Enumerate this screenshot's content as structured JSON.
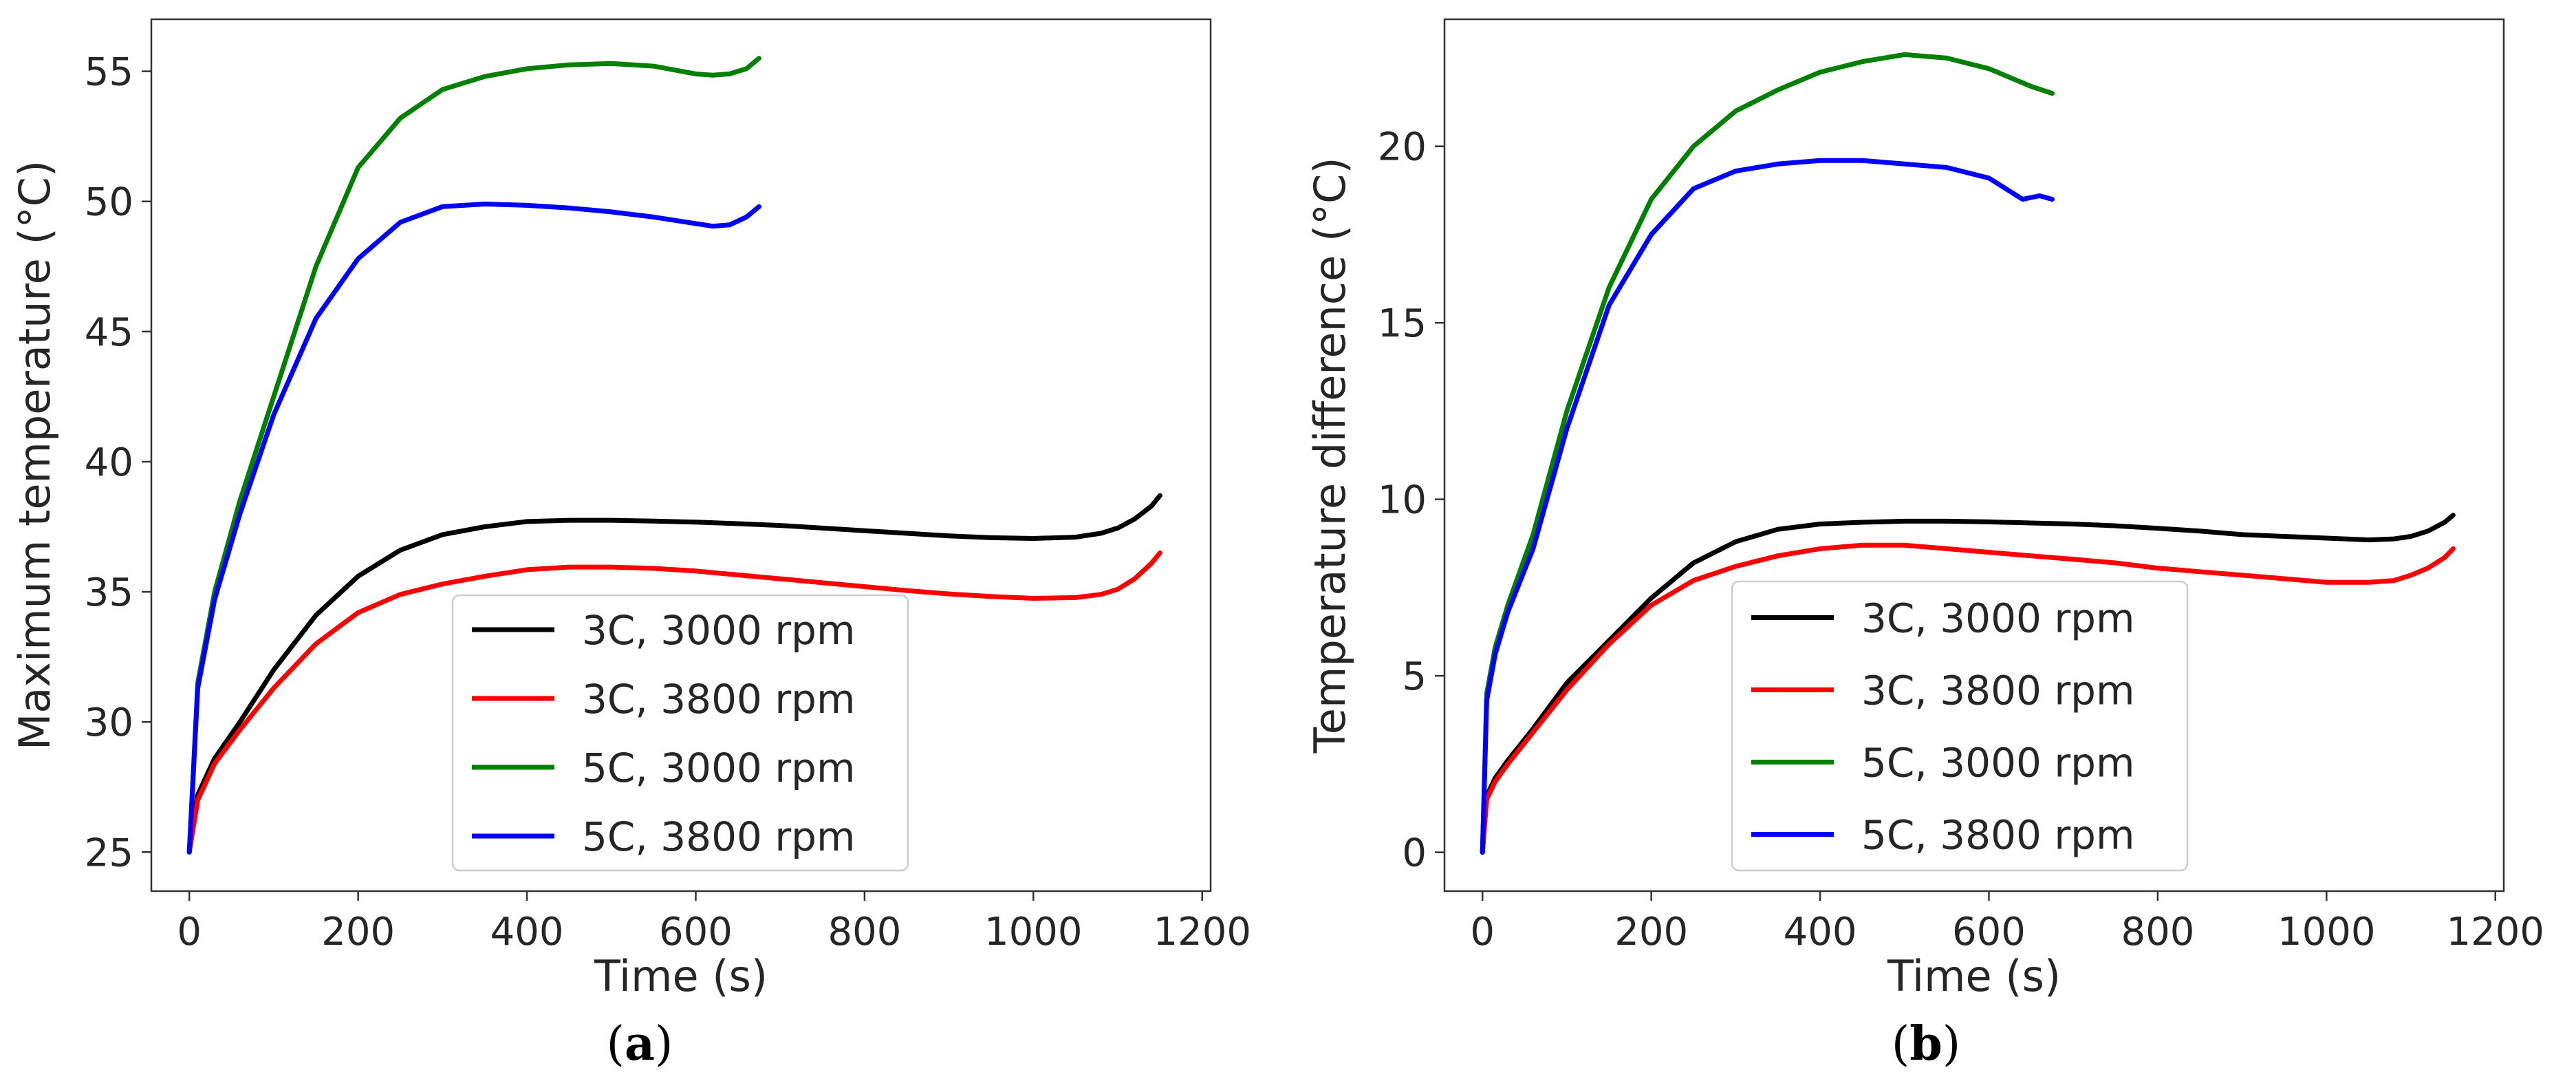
{
  "chart_data": [
    {
      "panel": "a",
      "panel_label": "a",
      "type": "line",
      "title": "",
      "xlabel": "Time (s)",
      "ylabel": "Maximum temperature (°C)",
      "xlim": [
        -45,
        1210
      ],
      "ylim": [
        23.5,
        57
      ],
      "xticks": [
        0,
        200,
        400,
        600,
        800,
        1000,
        1200
      ],
      "xtick_labels": [
        "0",
        "200",
        "400",
        "600",
        "800",
        "1000",
        "1200"
      ],
      "yticks": [
        25,
        30,
        35,
        40,
        45,
        50,
        55
      ],
      "ytick_labels": [
        "25",
        "30",
        "35",
        "40",
        "45",
        "50",
        "55"
      ],
      "legend_position": "lower-center",
      "series": [
        {
          "name": "3C, 3000 rpm",
          "color": "#000000",
          "x": [
            0,
            10,
            30,
            60,
            100,
            150,
            200,
            250,
            300,
            350,
            400,
            450,
            500,
            550,
            600,
            650,
            700,
            750,
            800,
            850,
            900,
            950,
            1000,
            1050,
            1080,
            1100,
            1120,
            1140,
            1150
          ],
          "y": [
            25.0,
            27.2,
            28.6,
            30.0,
            32.0,
            34.1,
            35.6,
            36.6,
            37.2,
            37.5,
            37.7,
            37.75,
            37.75,
            37.72,
            37.68,
            37.62,
            37.55,
            37.45,
            37.35,
            37.25,
            37.15,
            37.08,
            37.05,
            37.1,
            37.25,
            37.45,
            37.8,
            38.3,
            38.7
          ]
        },
        {
          "name": "3C, 3800 rpm",
          "color": "#ff0000",
          "x": [
            0,
            10,
            30,
            60,
            100,
            150,
            200,
            250,
            300,
            350,
            400,
            450,
            500,
            550,
            600,
            650,
            700,
            750,
            800,
            850,
            900,
            950,
            1000,
            1050,
            1080,
            1100,
            1120,
            1140,
            1150
          ],
          "y": [
            25.0,
            27.0,
            28.4,
            29.7,
            31.3,
            33.0,
            34.2,
            34.9,
            35.3,
            35.6,
            35.85,
            35.95,
            35.95,
            35.9,
            35.8,
            35.65,
            35.5,
            35.35,
            35.2,
            35.05,
            34.92,
            34.82,
            34.75,
            34.78,
            34.9,
            35.1,
            35.5,
            36.1,
            36.5
          ]
        },
        {
          "name": "5C, 3000 rpm",
          "color": "#008000",
          "x": [
            0,
            10,
            30,
            60,
            100,
            150,
            200,
            250,
            300,
            350,
            400,
            450,
            500,
            550,
            600,
            620,
            640,
            660,
            675
          ],
          "y": [
            25.0,
            31.5,
            35.0,
            38.5,
            42.5,
            47.5,
            51.3,
            53.2,
            54.3,
            54.8,
            55.1,
            55.25,
            55.3,
            55.2,
            54.9,
            54.85,
            54.9,
            55.1,
            55.5
          ]
        },
        {
          "name": "5C, 3800 rpm",
          "color": "#0000ff",
          "x": [
            0,
            10,
            30,
            60,
            100,
            150,
            200,
            250,
            300,
            350,
            400,
            450,
            500,
            550,
            600,
            620,
            640,
            660,
            675
          ],
          "y": [
            25.0,
            31.3,
            34.7,
            38.0,
            41.8,
            45.5,
            47.8,
            49.2,
            49.8,
            49.9,
            49.85,
            49.75,
            49.6,
            49.4,
            49.15,
            49.05,
            49.1,
            49.4,
            49.8
          ]
        }
      ]
    },
    {
      "panel": "b",
      "panel_label": "b",
      "type": "line",
      "title": "",
      "xlabel": "Time (s)",
      "ylabel": "Temperature difference (°C)",
      "xlim": [
        -45,
        1210
      ],
      "ylim": [
        -1.1,
        23.6
      ],
      "xticks": [
        0,
        200,
        400,
        600,
        800,
        1000,
        1200
      ],
      "xtick_labels": [
        "0",
        "200",
        "400",
        "600",
        "800",
        "1000",
        "1200"
      ],
      "yticks": [
        0,
        5,
        10,
        15,
        20
      ],
      "ytick_labels": [
        "0",
        "5",
        "10",
        "15",
        "20"
      ],
      "legend_position": "lower-center",
      "series": [
        {
          "name": "3C, 3000 rpm",
          "color": "#000000",
          "x": [
            0,
            5,
            15,
            30,
            60,
            100,
            150,
            200,
            250,
            300,
            350,
            400,
            450,
            500,
            550,
            600,
            650,
            700,
            750,
            800,
            850,
            900,
            950,
            1000,
            1050,
            1080,
            1100,
            1120,
            1140,
            1150
          ],
          "y": [
            0,
            1.6,
            2.1,
            2.6,
            3.5,
            4.8,
            6.0,
            7.2,
            8.2,
            8.8,
            9.15,
            9.3,
            9.35,
            9.38,
            9.38,
            9.36,
            9.33,
            9.3,
            9.25,
            9.18,
            9.1,
            9.0,
            8.95,
            8.9,
            8.85,
            8.88,
            8.95,
            9.1,
            9.35,
            9.55
          ]
        },
        {
          "name": "3C, 3800 rpm",
          "color": "#ff0000",
          "x": [
            0,
            5,
            15,
            30,
            60,
            100,
            150,
            200,
            250,
            300,
            350,
            400,
            450,
            500,
            550,
            600,
            650,
            700,
            750,
            800,
            850,
            900,
            950,
            1000,
            1050,
            1080,
            1100,
            1120,
            1140,
            1150
          ],
          "y": [
            0,
            1.5,
            2.0,
            2.5,
            3.4,
            4.6,
            5.9,
            7.0,
            7.7,
            8.1,
            8.4,
            8.6,
            8.7,
            8.7,
            8.6,
            8.5,
            8.4,
            8.3,
            8.2,
            8.05,
            7.95,
            7.85,
            7.75,
            7.65,
            7.65,
            7.7,
            7.85,
            8.05,
            8.35,
            8.6
          ]
        },
        {
          "name": "5C, 3000 rpm",
          "color": "#008000",
          "x": [
            0,
            5,
            15,
            30,
            60,
            100,
            150,
            200,
            250,
            300,
            350,
            400,
            450,
            500,
            550,
            600,
            650,
            675
          ],
          "y": [
            0,
            4.5,
            5.8,
            7.0,
            9.0,
            12.5,
            16.0,
            18.5,
            20.0,
            21.0,
            21.6,
            22.1,
            22.4,
            22.6,
            22.5,
            22.2,
            21.7,
            21.5
          ]
        },
        {
          "name": "5C, 3800 rpm",
          "color": "#0000ff",
          "x": [
            0,
            5,
            15,
            30,
            60,
            100,
            150,
            200,
            250,
            300,
            350,
            400,
            450,
            500,
            550,
            600,
            620,
            640,
            660,
            675
          ],
          "y": [
            0,
            4.3,
            5.6,
            6.8,
            8.6,
            12.0,
            15.5,
            17.5,
            18.8,
            19.3,
            19.5,
            19.6,
            19.6,
            19.5,
            19.4,
            19.1,
            18.8,
            18.5,
            18.6,
            18.5
          ]
        }
      ]
    }
  ]
}
